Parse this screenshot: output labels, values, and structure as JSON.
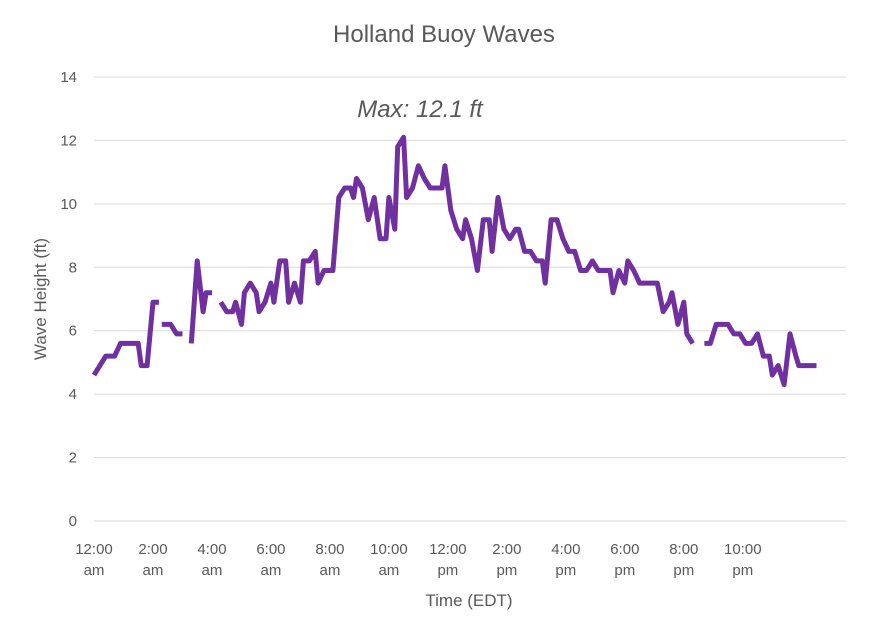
{
  "chart_data": {
    "type": "line",
    "title": "Holland Buoy Waves",
    "xlabel": "Time (EDT)",
    "ylabel": "Wave Height (ft)",
    "ylim": [
      0,
      14
    ],
    "yticks": [
      0,
      2,
      4,
      6,
      8,
      10,
      12,
      14
    ],
    "xlim": [
      0,
      25.5
    ],
    "xticks": [
      {
        "value": 0,
        "line1": "12:00",
        "line2": "am"
      },
      {
        "value": 2,
        "line1": "2:00",
        "line2": "am"
      },
      {
        "value": 4,
        "line1": "4:00",
        "line2": "am"
      },
      {
        "value": 6,
        "line1": "6:00",
        "line2": "am"
      },
      {
        "value": 8,
        "line1": "8:00",
        "line2": "am"
      },
      {
        "value": 10,
        "line1": "10:00",
        "line2": "am"
      },
      {
        "value": 12,
        "line1": "12:00",
        "line2": "pm"
      },
      {
        "value": 14,
        "line1": "2:00",
        "line2": "pm"
      },
      {
        "value": 16,
        "line1": "4:00",
        "line2": "pm"
      },
      {
        "value": 18,
        "line1": "6:00",
        "line2": "pm"
      },
      {
        "value": 20,
        "line1": "8:00",
        "line2": "pm"
      },
      {
        "value": 22,
        "line1": "10:00",
        "line2": "pm"
      }
    ],
    "grid": true,
    "line_color": "#7030a0",
    "annotation": {
      "text": "Max: 12.1 ft",
      "x": 10.4,
      "y": 12.1
    },
    "series": [
      {
        "segments": [
          [
            [
              0.0,
              4.6
            ],
            [
              0.4,
              5.2
            ],
            [
              0.7,
              5.2
            ],
            [
              0.9,
              5.6
            ],
            [
              1.2,
              5.6
            ],
            [
              1.5,
              5.6
            ],
            [
              1.6,
              4.9
            ],
            [
              1.8,
              4.9
            ],
            [
              2.0,
              6.9
            ],
            [
              2.2,
              6.9
            ]
          ],
          [
            [
              2.3,
              6.2
            ],
            [
              2.6,
              6.2
            ],
            [
              2.8,
              5.9
            ],
            [
              3.0,
              5.9
            ]
          ],
          [
            [
              3.3,
              5.6
            ],
            [
              3.5,
              8.2
            ],
            [
              3.7,
              6.6
            ],
            [
              3.8,
              7.2
            ],
            [
              4.0,
              7.2
            ]
          ],
          [
            [
              4.3,
              6.9
            ],
            [
              4.5,
              6.6
            ],
            [
              4.7,
              6.6
            ],
            [
              4.8,
              6.9
            ],
            [
              5.0,
              6.2
            ],
            [
              5.1,
              7.2
            ],
            [
              5.3,
              7.5
            ],
            [
              5.5,
              7.2
            ],
            [
              5.6,
              6.6
            ],
            [
              5.8,
              6.9
            ],
            [
              6.0,
              7.5
            ],
            [
              6.1,
              6.9
            ],
            [
              6.3,
              8.2
            ],
            [
              6.5,
              8.2
            ],
            [
              6.6,
              6.9
            ],
            [
              6.8,
              7.5
            ],
            [
              7.0,
              6.9
            ],
            [
              7.1,
              8.2
            ],
            [
              7.3,
              8.2
            ],
            [
              7.5,
              8.5
            ],
            [
              7.6,
              7.5
            ],
            [
              7.8,
              7.9
            ],
            [
              8.0,
              7.9
            ],
            [
              8.1,
              7.9
            ],
            [
              8.3,
              10.2
            ],
            [
              8.5,
              10.5
            ],
            [
              8.7,
              10.5
            ],
            [
              8.8,
              10.2
            ],
            [
              8.9,
              10.8
            ],
            [
              9.1,
              10.5
            ],
            [
              9.3,
              9.5
            ],
            [
              9.5,
              10.2
            ],
            [
              9.7,
              8.9
            ],
            [
              9.9,
              8.9
            ],
            [
              10.0,
              10.2
            ],
            [
              10.2,
              9.2
            ],
            [
              10.3,
              11.8
            ],
            [
              10.5,
              12.1
            ],
            [
              10.6,
              10.2
            ],
            [
              10.8,
              10.5
            ],
            [
              11.0,
              11.2
            ],
            [
              11.2,
              10.8
            ],
            [
              11.4,
              10.5
            ],
            [
              11.6,
              10.5
            ],
            [
              11.8,
              10.5
            ],
            [
              11.9,
              11.2
            ],
            [
              12.1,
              9.8
            ],
            [
              12.3,
              9.2
            ],
            [
              12.5,
              8.9
            ],
            [
              12.6,
              9.5
            ],
            [
              12.8,
              8.9
            ],
            [
              13.0,
              7.9
            ],
            [
              13.2,
              9.5
            ],
            [
              13.4,
              9.5
            ],
            [
              13.5,
              8.5
            ],
            [
              13.7,
              10.2
            ],
            [
              13.9,
              9.2
            ],
            [
              14.1,
              8.9
            ],
            [
              14.3,
              9.2
            ],
            [
              14.4,
              9.2
            ],
            [
              14.6,
              8.5
            ],
            [
              14.8,
              8.5
            ],
            [
              15.0,
              8.2
            ],
            [
              15.2,
              8.2
            ],
            [
              15.3,
              7.5
            ],
            [
              15.5,
              9.5
            ],
            [
              15.7,
              9.5
            ],
            [
              15.9,
              8.9
            ],
            [
              16.1,
              8.5
            ],
            [
              16.3,
              8.5
            ],
            [
              16.5,
              7.9
            ],
            [
              16.7,
              7.9
            ],
            [
              16.9,
              8.2
            ],
            [
              17.1,
              7.9
            ],
            [
              17.3,
              7.9
            ],
            [
              17.5,
              7.9
            ],
            [
              17.6,
              7.2
            ],
            [
              17.8,
              7.9
            ],
            [
              18.0,
              7.5
            ],
            [
              18.1,
              8.2
            ],
            [
              18.3,
              7.9
            ],
            [
              18.5,
              7.5
            ],
            [
              18.7,
              7.5
            ],
            [
              18.9,
              7.5
            ],
            [
              19.1,
              7.5
            ],
            [
              19.3,
              6.6
            ],
            [
              19.5,
              6.9
            ],
            [
              19.6,
              7.2
            ],
            [
              19.8,
              6.2
            ],
            [
              20.0,
              6.9
            ],
            [
              20.1,
              5.9
            ],
            [
              20.3,
              5.6
            ]
          ],
          [
            [
              20.7,
              5.6
            ],
            [
              20.9,
              5.6
            ],
            [
              21.1,
              6.2
            ],
            [
              21.3,
              6.2
            ],
            [
              21.5,
              6.2
            ],
            [
              21.7,
              5.9
            ],
            [
              21.9,
              5.9
            ],
            [
              22.1,
              5.6
            ],
            [
              22.3,
              5.6
            ],
            [
              22.5,
              5.9
            ],
            [
              22.7,
              5.2
            ],
            [
              22.9,
              5.2
            ],
            [
              23.0,
              4.6
            ],
            [
              23.2,
              4.9
            ],
            [
              23.4,
              4.3
            ],
            [
              23.6,
              5.9
            ],
            [
              23.8,
              5.2
            ],
            [
              23.9,
              4.9
            ],
            [
              24.1,
              4.9
            ],
            [
              24.3,
              4.9
            ],
            [
              24.5,
              4.9
            ]
          ]
        ]
      }
    ]
  }
}
